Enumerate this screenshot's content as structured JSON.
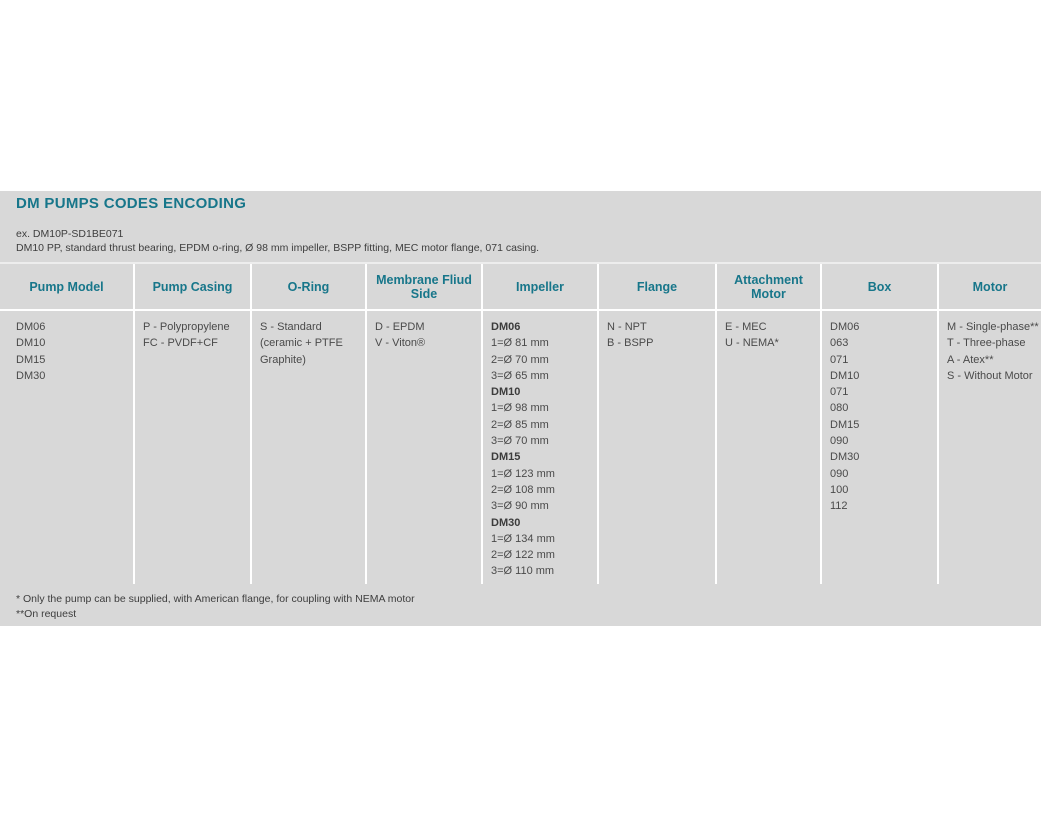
{
  "colors": {
    "accent_teal": "#17768a",
    "panel_gray": "#d8d8d8",
    "separator_white": "#ffffff",
    "body_text": "#4a4a4a"
  },
  "title": "DM PUMPS CODES ENCODING",
  "example": {
    "code_line": "ex. DM10P-SD1BE071",
    "description_line": "DM10 PP, standard thrust bearing, EPDM o-ring, Ø 98 mm impeller, BSPP fitting, MEC motor flange, 071 casing."
  },
  "table": {
    "columns": [
      {
        "header": "Pump Model",
        "width": 133,
        "lines": [
          {
            "text": "DM06"
          },
          {
            "text": "DM10"
          },
          {
            "text": "DM15"
          },
          {
            "text": "DM30"
          }
        ]
      },
      {
        "header": "Pump Casing",
        "width": 117,
        "lines": [
          {
            "text": "P - Polypropylene"
          },
          {
            "text": "FC - PVDF+CF"
          }
        ]
      },
      {
        "header": "O-Ring",
        "width": 115,
        "lines": [
          {
            "text": "S - Standard"
          },
          {
            "text": "(ceramic + PTFE"
          },
          {
            "text": "Graphite)"
          }
        ]
      },
      {
        "header": "Membrane Fliud Side",
        "width": 116,
        "lines": [
          {
            "text": "D - EPDM"
          },
          {
            "text": "V - Viton®"
          }
        ]
      },
      {
        "header": "Impeller",
        "width": 116,
        "lines": [
          {
            "text": "DM06",
            "bold": true
          },
          {
            "text": "1=Ø 81 mm"
          },
          {
            "text": "2=Ø 70 mm"
          },
          {
            "text": "3=Ø 65 mm"
          },
          {
            "text": "DM10",
            "bold": true
          },
          {
            "text": "1=Ø 98 mm"
          },
          {
            "text": "2=Ø 85 mm"
          },
          {
            "text": "3=Ø 70 mm"
          },
          {
            "text": "DM15",
            "bold": true
          },
          {
            "text": "1=Ø 123 mm"
          },
          {
            "text": "2=Ø 108 mm"
          },
          {
            "text": "3=Ø 90 mm"
          },
          {
            "text": "DM30",
            "bold": true
          },
          {
            "text": "1=Ø 134 mm"
          },
          {
            "text": "2=Ø 122 mm"
          },
          {
            "text": "3=Ø 110 mm"
          }
        ]
      },
      {
        "header": "Flange",
        "width": 118,
        "lines": [
          {
            "text": "N - NPT"
          },
          {
            "text": "B - BSPP"
          }
        ]
      },
      {
        "header": "Attachment Motor",
        "width": 105,
        "lines": [
          {
            "text": "E - MEC"
          },
          {
            "text": "U - NEMA*"
          }
        ]
      },
      {
        "header": "Box",
        "width": 117,
        "lines": [
          {
            "text": "DM06"
          },
          {
            "text": "063"
          },
          {
            "text": "071"
          },
          {
            "text": "DM10"
          },
          {
            "text": "071"
          },
          {
            "text": "080"
          },
          {
            "text": "DM15"
          },
          {
            "text": "090"
          },
          {
            "text": "DM30"
          },
          {
            "text": "090"
          },
          {
            "text": "100"
          },
          {
            "text": "112"
          }
        ]
      },
      {
        "header": "Motor",
        "width": 104,
        "lines": [
          {
            "text": "M - Single-phase**"
          },
          {
            "text": "T - Three-phase"
          },
          {
            "text": "A - Atex**"
          },
          {
            "text": "S - Without Motor"
          }
        ]
      }
    ]
  },
  "footnotes": [
    "* Only the pump can be supplied, with American flange, for coupling with NEMA motor",
    "**On request"
  ]
}
